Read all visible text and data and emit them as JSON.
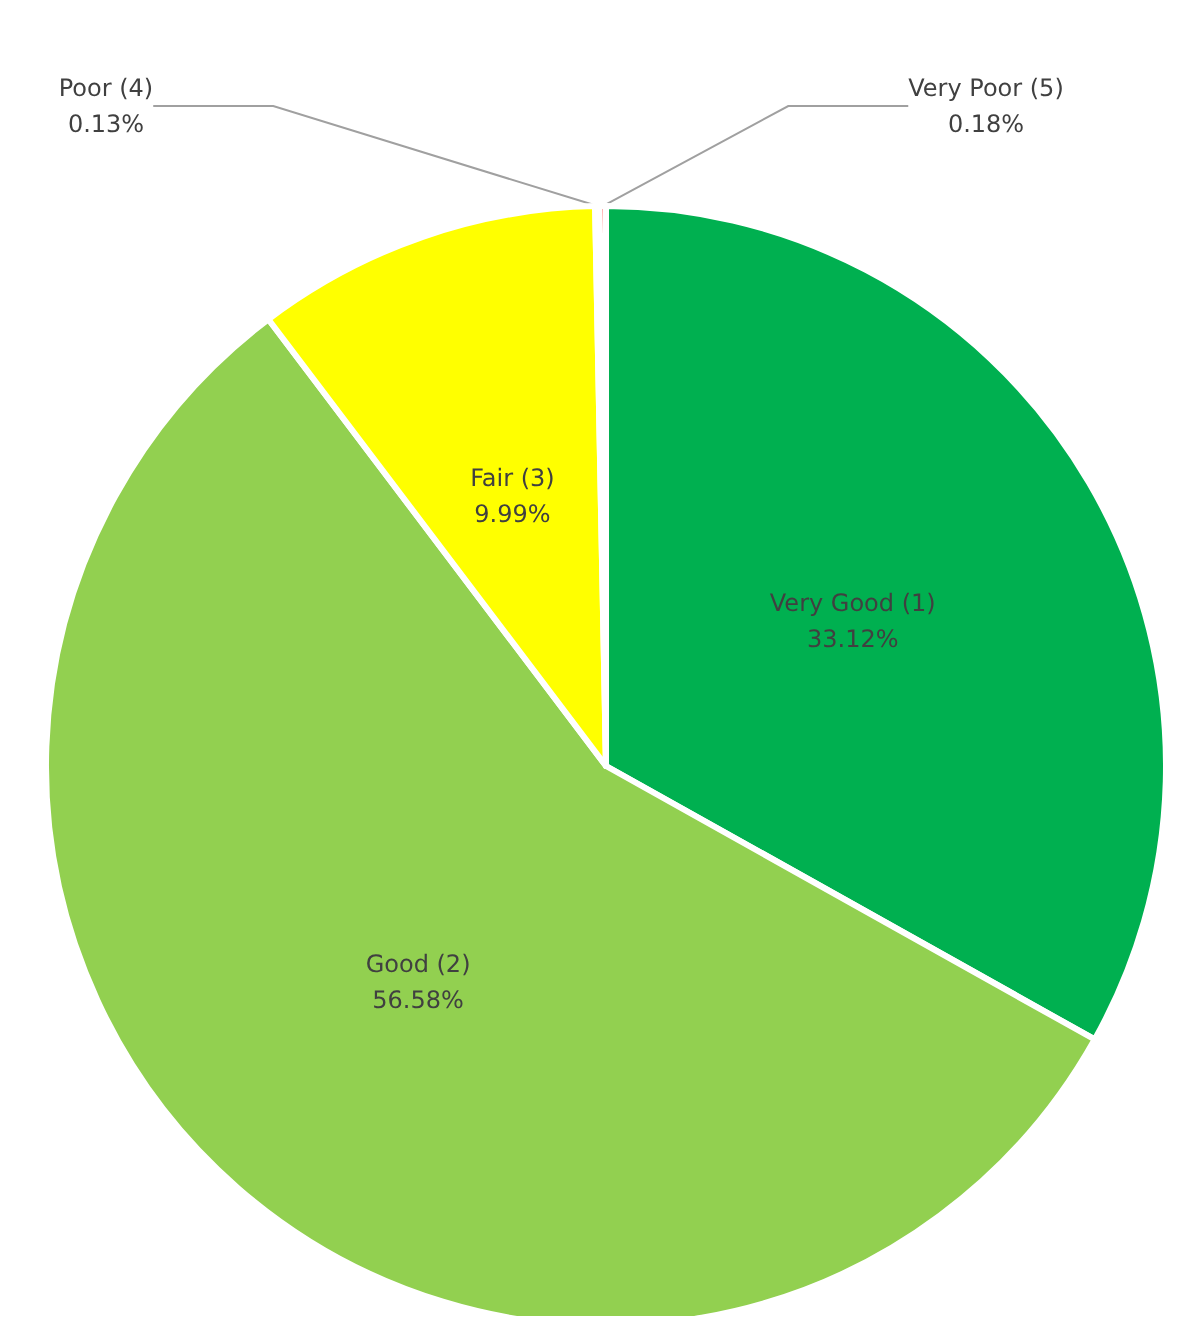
{
  "chart_data": {
    "type": "pie",
    "categories": [
      "Very Good (1)",
      "Good (2)",
      "Fair (3)",
      "Poor (4)",
      "Very Poor (5)"
    ],
    "values": [
      33.12,
      56.58,
      9.99,
      0.13,
      0.18
    ],
    "colors": [
      "#00b050",
      "#92d050",
      "#ffff00",
      "#ffc000",
      "#ff0000"
    ],
    "value_labels": [
      "33.12%",
      "56.58%",
      "9.99%",
      "0.13%",
      "0.18%"
    ],
    "legend": false
  }
}
